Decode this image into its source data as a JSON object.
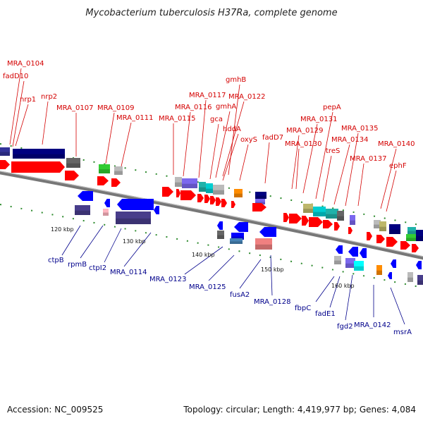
{
  "title": "Mycobacterium tuberculosis H37Ra, complete genome",
  "footer": {
    "accession": "Accession: NC_009525",
    "summary": "Topology: circular; Length: 4,419,977 bp; Genes: 4,084"
  },
  "ticks": [
    "120 kbp",
    "130 kbp",
    "140 kbp",
    "150 kbp",
    "160 kbp"
  ],
  "genes_top": [
    "MRA_0104",
    "fadD10",
    "nrp1",
    "nrp2",
    "MRA_0107",
    "MRA_0109",
    "MRA_0111",
    "MRA_0115",
    "MRA_0116",
    "MRA_0117",
    "gmhB",
    "MRA_0122",
    "gmhA",
    "gca",
    "hddA",
    "oxyS",
    "fadD7",
    "MRA_0129",
    "MRA_0130",
    "MRA_0131",
    "pepA",
    "treS",
    "MRA_0134",
    "MRA_0135",
    "MRA_0137",
    "MRA_0140",
    "ephF"
  ],
  "genes_bottom": [
    "ctpB",
    "rpmB",
    "ctpI2",
    "MRA_0114",
    "MRA_0123",
    "MRA_0125",
    "fusA2",
    "MRA_0128",
    "fbpC",
    "fadE1",
    "fgd2",
    "MRA_0142",
    "msrA"
  ],
  "colors": {
    "backbone": "#808080",
    "top_label": "#d40000",
    "bottom_label": "#00008b",
    "forward_cds": "#ff0000",
    "reverse_cds": "#0000ff",
    "tick_mark": "#228b22"
  }
}
